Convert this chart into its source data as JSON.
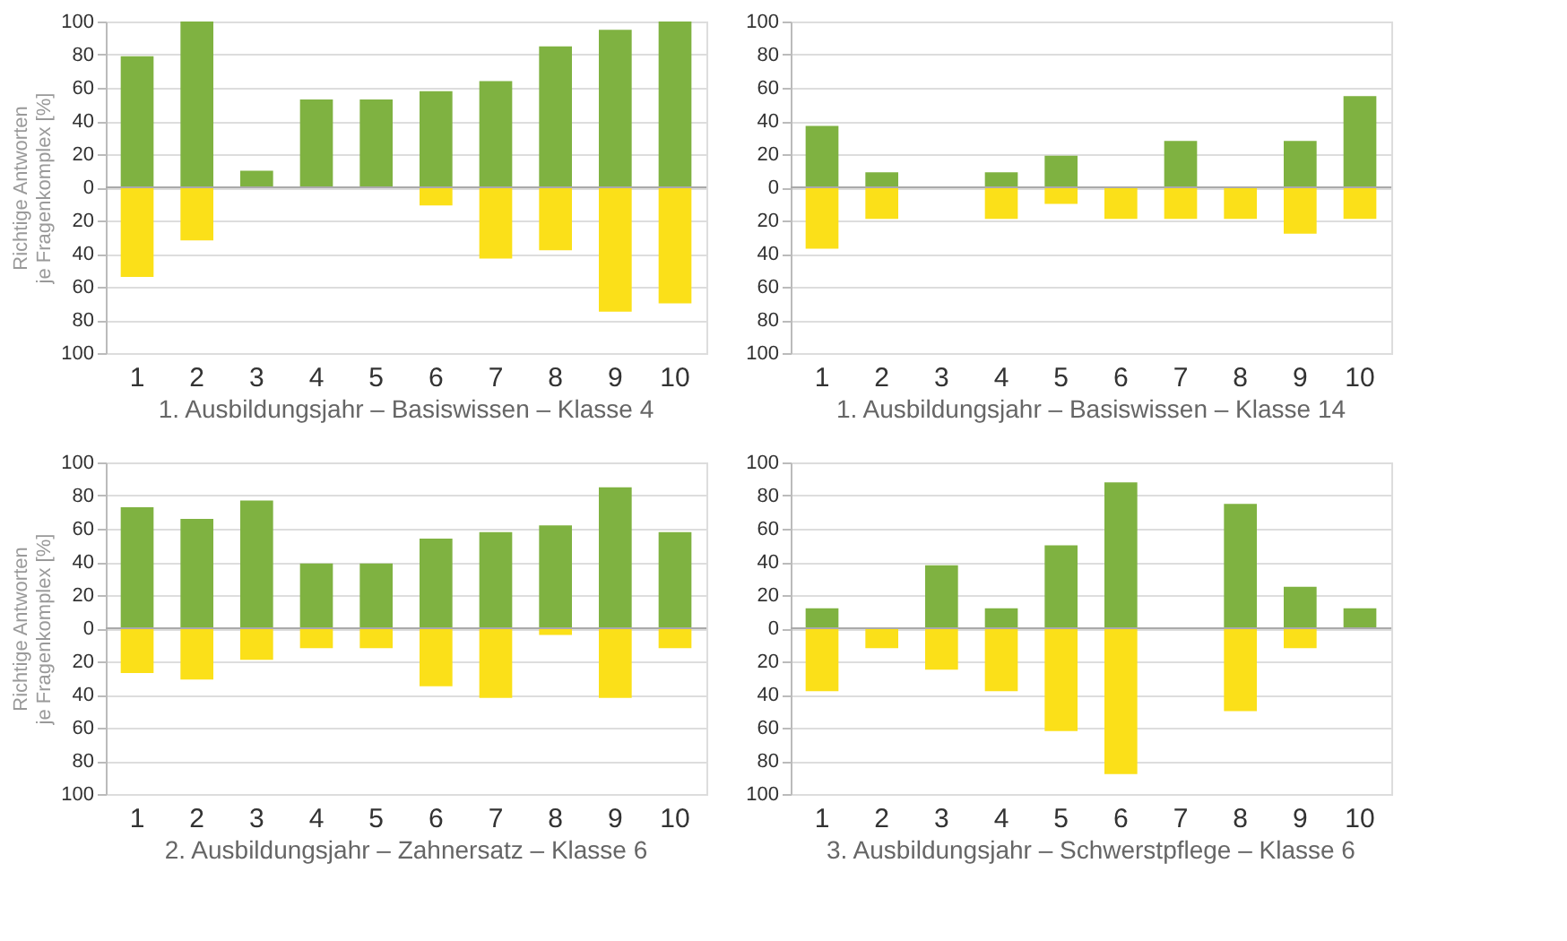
{
  "chart_data": [
    {
      "type": "bar",
      "stacked": true,
      "title": "1. Ausbildungsjahr – Basiswissen – Klasse 4",
      "ylabel": "Richtige Antworten\nje Fragenkomplex [%]",
      "categories": [
        "1",
        "2",
        "3",
        "4",
        "5",
        "6",
        "7",
        "8",
        "9",
        "10"
      ],
      "ylim": [
        -100,
        100
      ],
      "yticks": [
        {
          "value": -100,
          "label": "100"
        },
        {
          "value": -80,
          "label": "80"
        },
        {
          "value": -60,
          "label": "60"
        },
        {
          "value": -40,
          "label": "40"
        },
        {
          "value": -20,
          "label": "20"
        },
        0,
        20,
        40,
        60,
        80,
        100
      ],
      "grid": "y",
      "legend": false,
      "series": [
        {
          "color": "#7fb241",
          "values": [
            79,
            100,
            10,
            53,
            53,
            58,
            64,
            85,
            95,
            100
          ]
        },
        {
          "color": "#fbe019",
          "values": [
            -54,
            -32,
            0,
            0,
            0,
            -11,
            -43,
            -38,
            -75,
            -70
          ]
        }
      ]
    },
    {
      "type": "bar",
      "stacked": true,
      "title": "1. Ausbildungsjahr – Basiswissen – Klasse 14",
      "categories": [
        "1",
        "2",
        "3",
        "4",
        "5",
        "6",
        "7",
        "8",
        "9",
        "10"
      ],
      "ylim": [
        -100,
        100
      ],
      "yticks": [
        {
          "value": -100,
          "label": "100"
        },
        {
          "value": -80,
          "label": "80"
        },
        {
          "value": -60,
          "label": "60"
        },
        {
          "value": -40,
          "label": "40"
        },
        {
          "value": -20,
          "label": "20"
        },
        0,
        20,
        40,
        60,
        80,
        100
      ],
      "grid": "y",
      "legend": false,
      "series": [
        {
          "color": "#7fb241",
          "values": [
            37,
            9,
            0,
            9,
            19,
            0,
            28,
            0,
            28,
            55
          ]
        },
        {
          "color": "#fbe019",
          "values": [
            -37,
            -19,
            0,
            -19,
            -10,
            -19,
            -19,
            -19,
            -28,
            -19
          ]
        }
      ]
    },
    {
      "type": "bar",
      "stacked": true,
      "title": "2. Ausbildungsjahr – Zahnersatz – Klasse 6",
      "ylabel": "Richtige Antworten\nje Fragenkomplex [%]",
      "categories": [
        "1",
        "2",
        "3",
        "4",
        "5",
        "6",
        "7",
        "8",
        "9",
        "10"
      ],
      "ylim": [
        -100,
        100
      ],
      "yticks": [
        {
          "value": -100,
          "label": "100"
        },
        {
          "value": -80,
          "label": "80"
        },
        {
          "value": -60,
          "label": "60"
        },
        {
          "value": -40,
          "label": "40"
        },
        {
          "value": -20,
          "label": "20"
        },
        0,
        20,
        40,
        60,
        80,
        100
      ],
      "grid": "y",
      "legend": false,
      "series": [
        {
          "color": "#7fb241",
          "values": [
            73,
            66,
            77,
            39,
            39,
            54,
            58,
            62,
            85,
            58
          ]
        },
        {
          "color": "#fbe019",
          "values": [
            -27,
            -31,
            -19,
            -12,
            -12,
            -35,
            -42,
            -4,
            -42,
            -12
          ]
        }
      ]
    },
    {
      "type": "bar",
      "stacked": true,
      "title": "3. Ausbildungsjahr – Schwerstpflege – Klasse 6",
      "categories": [
        "1",
        "2",
        "3",
        "4",
        "5",
        "6",
        "7",
        "8",
        "9",
        "10"
      ],
      "ylim": [
        -100,
        100
      ],
      "yticks": [
        {
          "value": -100,
          "label": "100"
        },
        {
          "value": -80,
          "label": "80"
        },
        {
          "value": -60,
          "label": "60"
        },
        {
          "value": -40,
          "label": "40"
        },
        {
          "value": -20,
          "label": "20"
        },
        0,
        20,
        40,
        60,
        80,
        100
      ],
      "grid": "y",
      "legend": false,
      "series": [
        {
          "color": "#7fb241",
          "values": [
            12,
            0,
            38,
            12,
            50,
            88,
            0,
            75,
            25,
            12
          ]
        },
        {
          "color": "#fbe019",
          "values": [
            -38,
            -12,
            -25,
            -38,
            -62,
            -88,
            0,
            -50,
            -12,
            0
          ]
        }
      ]
    }
  ]
}
